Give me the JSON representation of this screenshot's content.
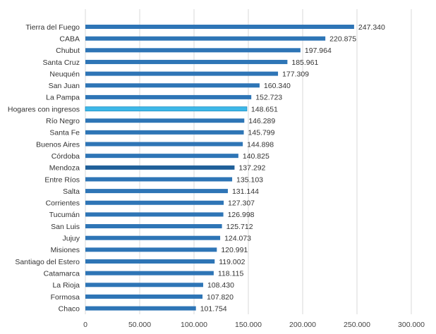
{
  "chart_data": {
    "type": "bar",
    "orientation": "horizontal",
    "categories": [
      "Tierra del Fuego",
      "CABA",
      "Chubut",
      "Santa Cruz",
      "Neuquén",
      "San Juan",
      "La Pampa",
      "Hogares con ingresos",
      "Río Negro",
      "Santa Fe",
      "Buenos Aires",
      "Córdoba",
      "Mendoza",
      "Entre Ríos",
      "Salta",
      "Corrientes",
      "Tucumán",
      "San Luis",
      "Jujuy",
      "Misiones",
      "Santiago del Estero",
      "Catamarca",
      "La Rioja",
      "Formosa",
      "Chaco"
    ],
    "values": [
      247340,
      220875,
      197964,
      185961,
      177309,
      160340,
      152723,
      148651,
      146289,
      145799,
      144898,
      140825,
      137292,
      135103,
      131144,
      127307,
      126998,
      125712,
      124073,
      120991,
      119002,
      118115,
      108430,
      107820,
      101754
    ],
    "value_labels": [
      "247.340",
      "220.875",
      "197.964",
      "185.961",
      "177.309",
      "160.340",
      "152.723",
      "148.651",
      "146.289",
      "145.799",
      "144.898",
      "140.825",
      "137.292",
      "135.103",
      "131.144",
      "127.307",
      "126.998",
      "125.712",
      "124.073",
      "120.991",
      "119.002",
      "118.115",
      "108.430",
      "107.820",
      "101.754"
    ],
    "xlim": [
      0,
      300000
    ],
    "x_ticks": [
      0,
      50000,
      100000,
      150000,
      200000,
      250000,
      300000
    ],
    "x_tick_labels": [
      "0",
      "50.000",
      "100.000",
      "150.000",
      "200.000",
      "250.000",
      "300.000"
    ],
    "grid": "vertical",
    "colors": {
      "bar": "#2e75b6",
      "highlight": "#3db8e8",
      "highlight_edge": "#1f8fc4",
      "highlight_category": "Hogares con ingresos",
      "emphasis": "#1f5f99",
      "emphasis_category": "Mendoza"
    }
  }
}
